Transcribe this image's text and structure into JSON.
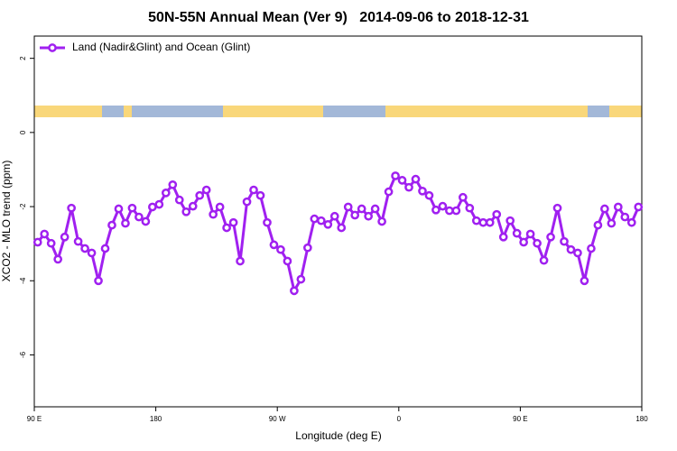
{
  "chart_data": {
    "type": "line",
    "title": "50N-55N Annual Mean (Ver 9)   2014-09-06 to 2018-12-31",
    "xlabel": "Longitude (deg E)",
    "ylabel": "XCO2 - MLO trend (ppm)",
    "xlim": [
      90,
      540
    ],
    "ylim": [
      -7.4,
      2.6
    ],
    "xticks": [
      {
        "value": 90,
        "label": "90 E"
      },
      180,
      {
        "value": 270,
        "label": "90 W"
      },
      {
        "value": 360,
        "label": "0"
      },
      {
        "value": 450,
        "label": "90 E"
      },
      {
        "value": 540,
        "label": "180"
      }
    ],
    "yticks": [
      2,
      0,
      -2,
      -4,
      -6
    ],
    "legend": "upper left",
    "x": [
      92.5,
      97.5,
      102.5,
      107.5,
      112.5,
      117.5,
      122.5,
      127.5,
      132.5,
      137.5,
      142.5,
      147.5,
      152.5,
      157.5,
      162.5,
      167.5,
      172.5,
      177.5,
      182.5,
      187.5,
      192.5,
      197.5,
      202.5,
      207.5,
      212.5,
      217.5,
      222.5,
      227.5,
      232.5,
      237.5,
      242.5,
      247.5,
      252.5,
      257.5,
      262.5,
      267.5,
      272.5,
      277.5,
      282.5,
      287.5,
      292.5,
      297.5,
      302.5,
      307.5,
      312.5,
      317.5,
      322.5,
      327.5,
      332.5,
      337.5,
      342.5,
      347.5,
      352.5,
      357.5,
      362.5,
      367.5,
      372.5,
      377.5,
      382.5,
      387.5,
      392.5,
      397.5,
      402.5,
      407.5,
      412.5,
      417.5,
      422.5,
      427.5,
      432.5,
      437.5,
      442.5,
      447.5,
      452.5,
      457.5,
      462.5,
      467.5,
      472.5,
      477.5,
      482.5,
      487.5,
      492.5,
      497.5,
      502.5,
      507.5,
      512.5,
      517.5,
      522.5,
      527.5,
      532.5,
      537.5
    ],
    "series": [
      {
        "name": "Land (Nadir&Glint) and Ocean (Glint)",
        "color": "#a020f0",
        "values": [
          -2.96,
          -2.74,
          -2.99,
          -3.42,
          -2.82,
          -2.04,
          -2.94,
          -3.13,
          -3.25,
          -4.0,
          -3.13,
          -2.5,
          -2.06,
          -2.45,
          -2.04,
          -2.28,
          -2.4,
          -2.01,
          -1.94,
          -1.63,
          -1.41,
          -1.82,
          -2.14,
          -1.99,
          -1.7,
          -1.55,
          -2.21,
          -2.01,
          -2.57,
          -2.43,
          -3.47,
          -1.87,
          -1.55,
          -1.7,
          -2.43,
          -3.03,
          -3.16,
          -3.47,
          -4.27,
          -3.96,
          -3.11,
          -2.33,
          -2.38,
          -2.48,
          -2.26,
          -2.57,
          -2.01,
          -2.23,
          -2.06,
          -2.26,
          -2.06,
          -2.4,
          -1.6,
          -1.17,
          -1.29,
          -1.48,
          -1.26,
          -1.58,
          -1.7,
          -2.09,
          -1.99,
          -2.11,
          -2.11,
          -1.75,
          -2.04,
          -2.38,
          -2.43,
          -2.43,
          -2.21,
          -2.82,
          -2.38,
          -2.72,
          -2.96,
          -2.74,
          -2.99,
          -3.45,
          -2.82,
          -2.04,
          -2.94,
          -3.16,
          -3.25,
          -4.0,
          -3.13,
          -2.5,
          -2.06,
          -2.45,
          -2.01,
          -2.28,
          -2.43,
          -2.01
        ]
      }
    ]
  }
}
